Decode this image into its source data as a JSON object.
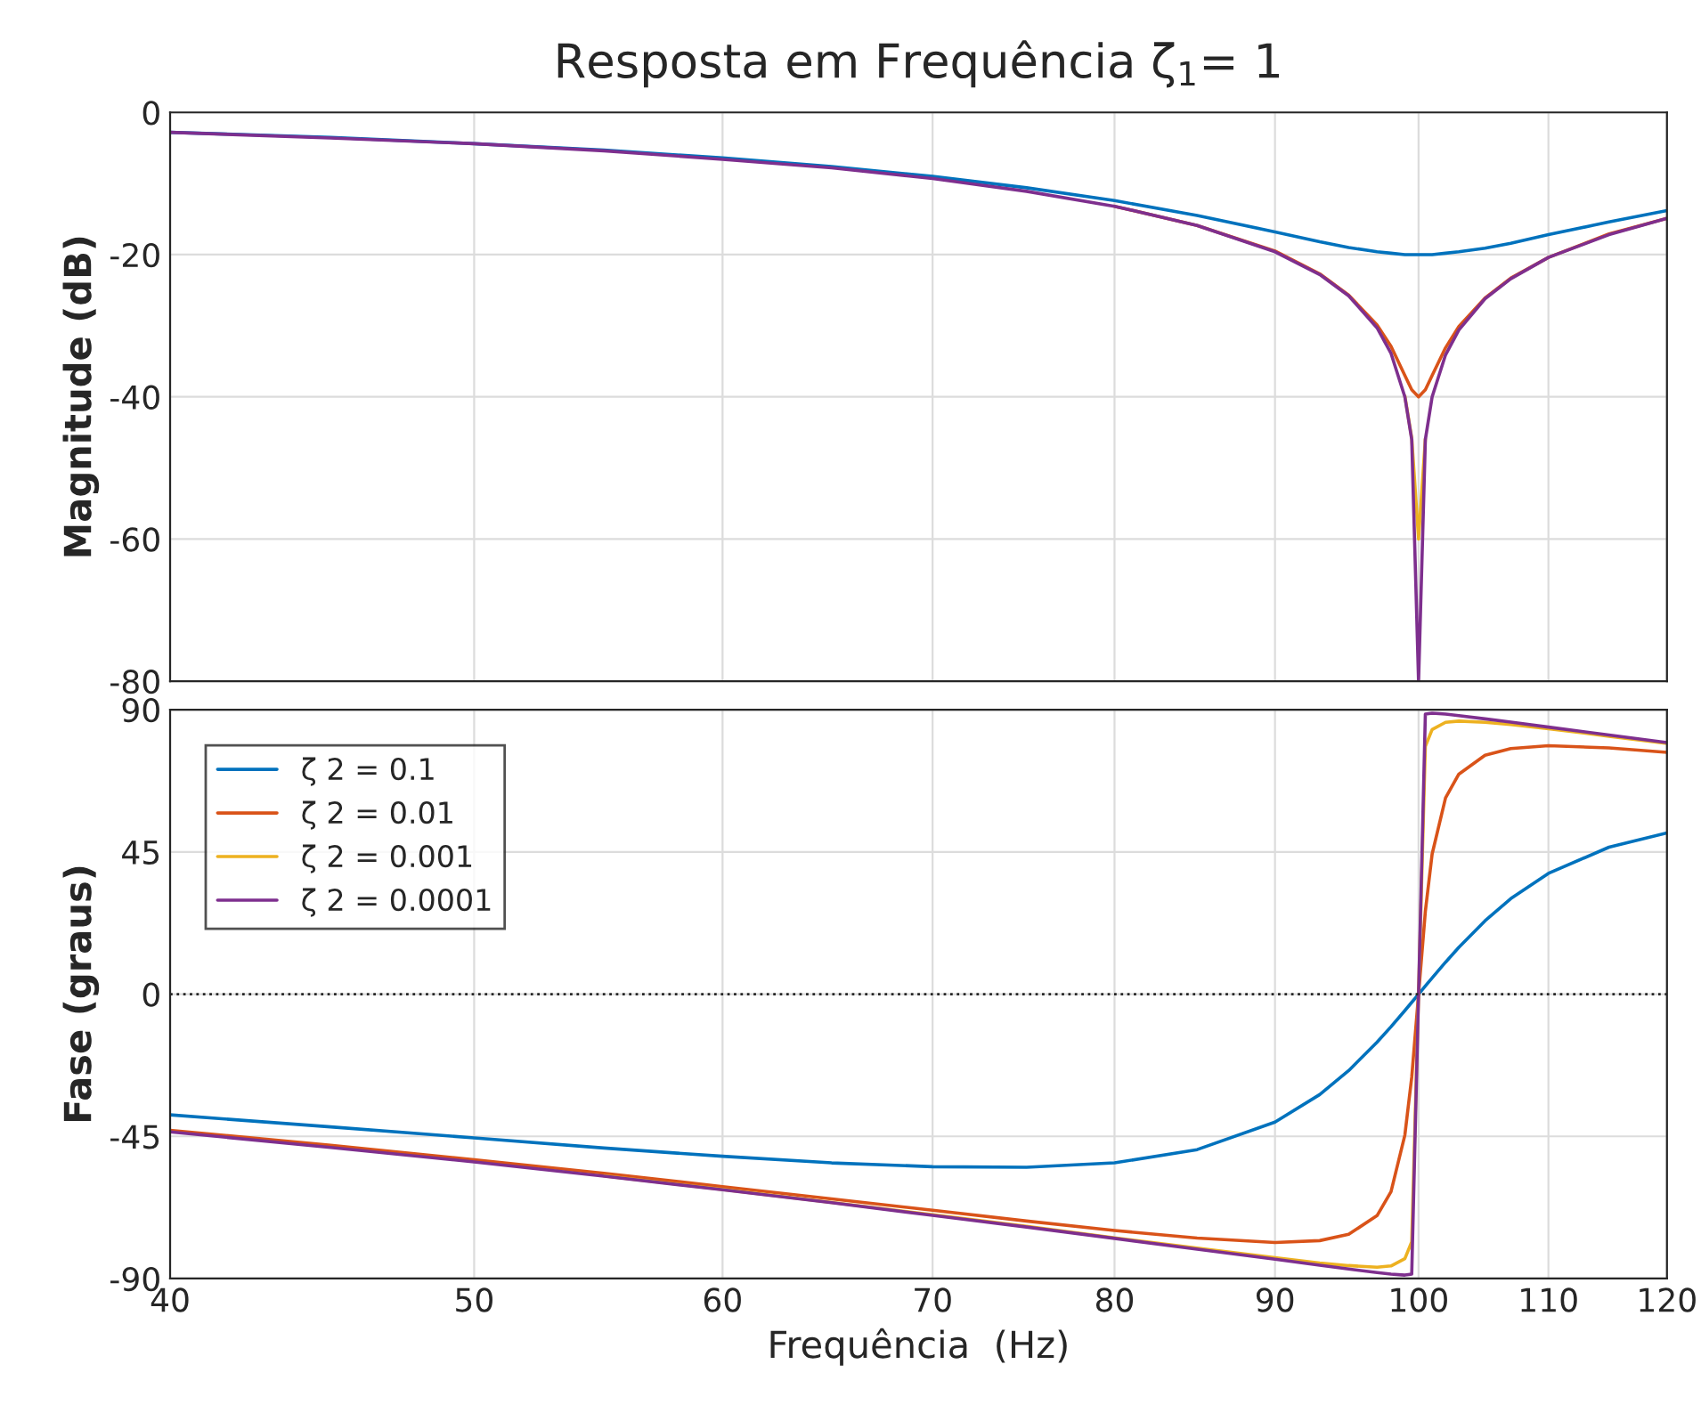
{
  "chart_data": [
    {
      "type": "line",
      "title": "Resposta em Frequência ζ$_{1}$= 1",
      "ylabel": "Magnitude (dB)",
      "log": "x",
      "grid": true,
      "tick_labels": "y",
      "x": [
        40,
        45,
        50,
        55,
        60,
        65,
        70,
        75,
        80,
        85,
        90,
        93,
        95,
        97,
        98,
        99,
        99.5,
        100,
        100.5,
        101,
        102,
        103,
        105,
        107,
        110,
        115,
        120
      ],
      "xlim": [
        40,
        120
      ],
      "xticks": [
        40,
        50,
        60,
        70,
        80,
        90,
        100,
        110,
        120
      ],
      "ylim": [
        -80,
        0
      ],
      "yticks": [
        -80,
        -60,
        -40,
        -20,
        0
      ],
      "series": [
        {
          "color": "#0072bd",
          "values": [
            -2.8,
            -3.5,
            -4.4,
            -5.3,
            -6.4,
            -7.6,
            -9.0,
            -10.6,
            -12.4,
            -14.5,
            -16.8,
            -18.2,
            -19.0,
            -19.6,
            -19.8,
            -20.0,
            -20.0,
            -20.0,
            -20.0,
            -20.0,
            -19.8,
            -19.6,
            -19.1,
            -18.4,
            -17.2,
            -15.4,
            -13.8
          ]
        },
        {
          "color": "#d95319",
          "values": [
            null,
            null,
            null,
            null,
            null,
            null,
            null,
            null,
            -13.2,
            -15.9,
            -19.5,
            -22.7,
            -25.7,
            -29.9,
            -32.9,
            -37.0,
            -39.0,
            -40,
            -39.0,
            -37.0,
            -33.1,
            -30.1,
            -26.1,
            -23.3,
            -20.4,
            -17.1,
            -14.9
          ]
        },
        {
          "color": "#edb120",
          "values": [
            null,
            null,
            null,
            null,
            null,
            null,
            null,
            null,
            null,
            null,
            null,
            null,
            null,
            null,
            null,
            -39.9,
            -45.8,
            -60,
            -45.9,
            null,
            null,
            null,
            null,
            null,
            null,
            null,
            null
          ]
        },
        {
          "color": "#7e2f8e",
          "values": [
            -2.8,
            -3.6,
            -4.4,
            -5.4,
            -6.6,
            -7.8,
            -9.3,
            -11.1,
            -13.2,
            -15.9,
            -19.6,
            -22.8,
            -25.8,
            -30.3,
            -33.9,
            -40.0,
            -46.0,
            -80,
            -46.0,
            -40.0,
            -34.1,
            -30.6,
            -26.2,
            -23.4,
            -20.4,
            -17.2,
            -14.9
          ]
        }
      ]
    },
    {
      "type": "line",
      "xlabel": "Frequência  (Hz)",
      "ylabel": "Fase (graus)",
      "log": "x",
      "grid": true,
      "legend": "top left",
      "x": [
        40,
        45,
        50,
        55,
        60,
        65,
        70,
        75,
        80,
        85,
        90,
        93,
        95,
        97,
        98,
        99,
        99.5,
        100,
        100.5,
        101,
        102,
        103,
        105,
        107,
        110,
        115,
        120
      ],
      "xlim": [
        40,
        120
      ],
      "xticks": [
        40,
        50,
        60,
        70,
        80,
        90,
        100,
        110,
        120
      ],
      "ylim": [
        -90,
        90
      ],
      "yticks": [
        -90,
        -45,
        0,
        45,
        90
      ],
      "ref_lines": [
        {
          "axis": "y",
          "value": 0,
          "color": "#262626",
          "line_style": "dotted"
        }
      ],
      "series": [
        {
          "name": "ζ 2 = 0.1",
          "color": "#0072bd",
          "values": [
            -38.2,
            -42.0,
            -45.5,
            -48.7,
            -51.3,
            -53.4,
            -54.6,
            -54.8,
            -53.4,
            -49.2,
            -40.5,
            -31.8,
            -24.2,
            -15.2,
            -10.3,
            -5.2,
            -2.6,
            0,
            2.6,
            5.1,
            10.1,
            14.8,
            23.2,
            30.2,
            38.2,
            46.5,
            51.0
          ]
        },
        {
          "name": "ζ 2 = 0.01",
          "color": "#d95319",
          "values": [
            -43.1,
            -47.8,
            -52.4,
            -56.7,
            -60.9,
            -64.8,
            -68.4,
            -71.8,
            -74.8,
            -77.2,
            -78.6,
            -78.0,
            -76.0,
            -70.1,
            -62.5,
            -44.6,
            -26.3,
            0,
            26.2,
            44.3,
            62.1,
            69.6,
            75.6,
            77.7,
            78.6,
            77.9,
            76.5
          ]
        },
        {
          "name": "ζ 2 = 0.001",
          "color": "#edb120",
          "values": [
            null,
            null,
            null,
            -57.5,
            -61.8,
            -65.9,
            -69.8,
            -73.5,
            -77.1,
            -80.4,
            -83.4,
            -85.1,
            -85.9,
            -86.4,
            -86.0,
            -83.7,
            -78.4,
            0,
            78.4,
            83.7,
            86.0,
            86.4,
            86.0,
            85.3,
            84.0,
            81.6,
            79.3
          ]
        },
        {
          "name": "ζ 2 = 0.0001",
          "color": "#7e2f8e",
          "values": [
            -43.6,
            -48.5,
            -53.1,
            -57.6,
            -61.9,
            -66.0,
            -70.0,
            -73.7,
            -77.3,
            -80.7,
            -83.9,
            -85.8,
            -87.0,
            -88.1,
            -88.6,
            -88.9,
            -88.6,
            0,
            88.6,
            88.9,
            88.6,
            88.1,
            87.1,
            86.1,
            84.5,
            82.0,
            79.6
          ]
        }
      ]
    }
  ]
}
